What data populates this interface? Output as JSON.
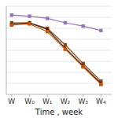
{
  "chart_data": {
    "type": "line",
    "xlabel": "Time , week",
    "x": [
      0,
      1,
      2,
      3,
      4,
      5
    ],
    "xlim": [
      -0.3,
      5.6
    ],
    "xticks": [
      {
        "value": 0,
        "label": "W"
      },
      {
        "value": 1,
        "label": "W₀"
      },
      {
        "value": 2,
        "label": "W₁"
      },
      {
        "value": 3,
        "label": "W₂"
      },
      {
        "value": 4,
        "label": "W₃"
      },
      {
        "value": 5,
        "label": "W₄"
      }
    ],
    "ylim": [
      20,
      100
    ],
    "yticks": [
      30,
      40,
      50,
      60,
      70,
      80,
      90,
      100
    ],
    "grid": true,
    "tick_labels": "x",
    "series": [
      {
        "color": "#9575b5",
        "marker": "square",
        "values": [
          92,
          91,
          89,
          85,
          82,
          78
        ]
      },
      {
        "color": "#8B4513",
        "marker": "square",
        "values": [
          85,
          85,
          80,
          65,
          48,
          32
        ]
      },
      {
        "color": "#1a1a1a",
        "marker": "triangle",
        "values": [
          84,
          85,
          79,
          62,
          46,
          30
        ]
      },
      {
        "color": "#cc5500",
        "marker": "square",
        "values": [
          83,
          84,
          77,
          61,
          45,
          29
        ]
      }
    ]
  }
}
